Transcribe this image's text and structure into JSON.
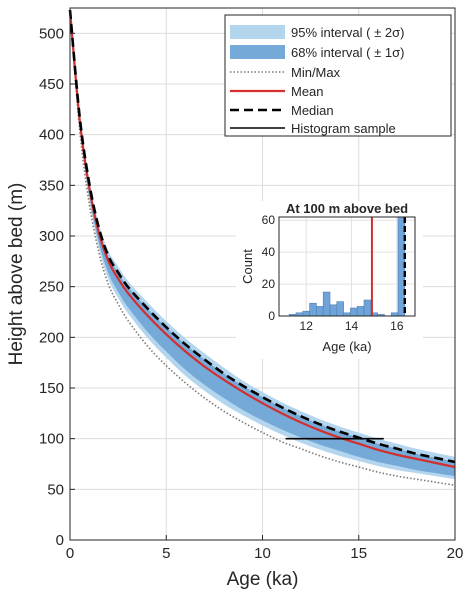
{
  "chart_data": {
    "type": "line",
    "xlabel": "Age (ka)",
    "ylabel": "Height above bed (m)",
    "xlim": [
      0,
      20
    ],
    "ylim": [
      0,
      525
    ],
    "xticks": [
      0,
      5,
      10,
      15,
      20
    ],
    "yticks": [
      0,
      50,
      100,
      150,
      200,
      250,
      300,
      350,
      400,
      450,
      500
    ],
    "grid": true,
    "legend_position": "top-right",
    "ages": [
      0,
      0.5,
      1.0,
      1.5,
      2.0,
      2.5,
      3,
      4,
      5,
      6,
      7,
      8,
      9,
      10,
      11,
      12,
      13,
      14,
      15,
      16,
      17,
      18,
      19,
      20
    ],
    "series": [
      {
        "name": "95% interval (±2σ) upper",
        "values": [
          523,
          420,
          355,
          312,
          285,
          270,
          256,
          235,
          216,
          199,
          184,
          170,
          157,
          146,
          136,
          127,
          119,
          112,
          106,
          100,
          95,
          90,
          86,
          82
        ]
      },
      {
        "name": "68% interval (±1σ) upper",
        "values": [
          523,
          418,
          352,
          308,
          280,
          264,
          250,
          229,
          210,
          193,
          178,
          164,
          152,
          141,
          131,
          122,
          114,
          107,
          101,
          95,
          90,
          85,
          81,
          77
        ]
      },
      {
        "name": "Mean",
        "values": [
          523,
          415,
          348,
          303,
          275,
          258,
          244,
          222,
          203,
          186,
          171,
          158,
          146,
          135,
          125,
          116,
          108,
          101,
          95,
          89,
          84,
          80,
          76,
          72
        ]
      },
      {
        "name": "Median",
        "values": [
          523,
          418,
          352,
          308,
          280,
          264,
          250,
          229,
          210,
          193,
          178,
          164,
          152,
          141,
          131,
          122,
          114,
          107,
          101,
          95,
          90,
          85,
          81,
          77
        ]
      },
      {
        "name": "68% interval (±1σ) lower",
        "values": [
          523,
          410,
          340,
          293,
          263,
          245,
          230,
          206,
          186,
          168,
          153,
          140,
          128,
          118,
          109,
          101,
          94,
          88,
          82,
          77,
          73,
          69,
          66,
          63
        ]
      },
      {
        "name": "95% interval (±2σ) lower",
        "values": [
          523,
          408,
          336,
          288,
          257,
          239,
          224,
          200,
          180,
          162,
          147,
          134,
          123,
          113,
          104,
          96,
          89,
          83,
          78,
          73,
          69,
          66,
          63,
          60
        ]
      },
      {
        "name": "Min/Max lower",
        "values": [
          523,
          405,
          332,
          284,
          252,
          233,
          217,
          192,
          172,
          155,
          140,
          127,
          116,
          106,
          97,
          90,
          83,
          77,
          72,
          67,
          63,
          60,
          57,
          54
        ]
      }
    ],
    "histogram_sample": {
      "height": 100,
      "age_min": 11.2,
      "age_max": 16.3
    },
    "colors": {
      "band95": "#b4d5ee",
      "band68": "#74a9d8",
      "mean": "#d32f2f",
      "median": "#000000",
      "minmax": "#7a7a7a",
      "sample": "#000000"
    },
    "legend": {
      "band95": "95%  interval  ( ± 2σ)",
      "band68": "68%  interval  ( ± 1σ)",
      "minmax": "Min/Max",
      "mean": "Mean",
      "median": "Median",
      "sample": "Histogram sample"
    },
    "inset": {
      "type": "bar",
      "title": "At 100 m above bed",
      "xlabel": "Age (ka)",
      "ylabel": "Count",
      "xlim": [
        10.8,
        16.8
      ],
      "ylim": [
        0,
        62
      ],
      "xticks": [
        12,
        14,
        16
      ],
      "yticks": [
        0,
        20,
        40,
        60
      ],
      "bar_width": 0.3,
      "bars": [
        {
          "x": 11.4,
          "count": 1
        },
        {
          "x": 11.7,
          "count": 2
        },
        {
          "x": 12.0,
          "count": 3
        },
        {
          "x": 12.3,
          "count": 8
        },
        {
          "x": 12.6,
          "count": 6
        },
        {
          "x": 12.9,
          "count": 15
        },
        {
          "x": 13.2,
          "count": 7
        },
        {
          "x": 13.5,
          "count": 9
        },
        {
          "x": 13.8,
          "count": 2
        },
        {
          "x": 14.1,
          "count": 5
        },
        {
          "x": 14.4,
          "count": 6
        },
        {
          "x": 14.7,
          "count": 10
        },
        {
          "x": 15.0,
          "count": 2
        },
        {
          "x": 15.3,
          "count": 1
        },
        {
          "x": 15.6,
          "count": 0
        },
        {
          "x": 15.9,
          "count": 2
        },
        {
          "x": 16.2,
          "count": 62
        }
      ],
      "mean_line": 14.9,
      "median_line": 16.35
    }
  }
}
